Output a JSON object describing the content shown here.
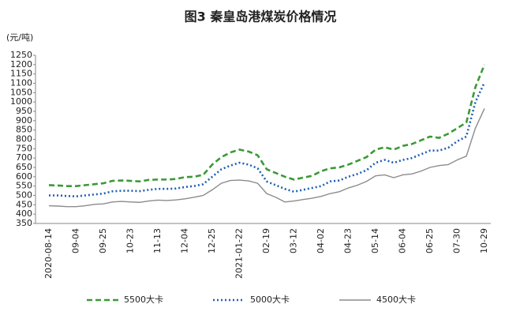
{
  "chart_data": {
    "type": "line",
    "title": "图3  秦皇岛港煤炭价格情况",
    "y_label": "(元/吨)",
    "categories": [
      "2020-08-14",
      null,
      null,
      "09-04",
      null,
      null,
      "09-25",
      null,
      null,
      "10-23",
      null,
      null,
      "11-13",
      null,
      null,
      "12-04",
      null,
      null,
      "12-25",
      null,
      null,
      "2021-01-22",
      null,
      null,
      "02-19",
      null,
      null,
      "03-12",
      null,
      null,
      "04-02",
      null,
      null,
      "04-23",
      null,
      null,
      "05-14",
      null,
      null,
      "06-04",
      null,
      null,
      "06-25",
      null,
      null,
      "07-30",
      null,
      null,
      "10-29"
    ],
    "series": [
      {
        "name": "5500大卡",
        "color": "#3a9a35",
        "style": "dashed",
        "values": [
          555,
          553,
          550,
          550,
          555,
          560,
          565,
          578,
          580,
          578,
          575,
          583,
          585,
          585,
          588,
          598,
          600,
          610,
          665,
          705,
          730,
          745,
          735,
          715,
          640,
          620,
          600,
          585,
          595,
          605,
          630,
          645,
          650,
          665,
          685,
          705,
          745,
          758,
          745,
          765,
          775,
          795,
          815,
          808,
          830,
          860,
          890,
          1080,
          1200
        ]
      },
      {
        "name": "5000大卡",
        "color": "#1f5fb4",
        "style": "dotted",
        "values": [
          500,
          500,
          497,
          495,
          500,
          505,
          510,
          522,
          525,
          525,
          523,
          530,
          535,
          535,
          537,
          545,
          550,
          560,
          600,
          640,
          660,
          675,
          665,
          645,
          575,
          555,
          535,
          520,
          530,
          540,
          550,
          575,
          580,
          600,
          615,
          635,
          675,
          690,
          675,
          690,
          700,
          720,
          740,
          740,
          755,
          790,
          815,
          1000,
          1105
        ]
      },
      {
        "name": "4500大卡",
        "color": "#8c8c8c",
        "style": "solid",
        "values": [
          445,
          443,
          440,
          440,
          445,
          452,
          455,
          465,
          468,
          465,
          463,
          470,
          475,
          473,
          476,
          482,
          490,
          500,
          530,
          565,
          580,
          582,
          578,
          565,
          510,
          490,
          465,
          470,
          478,
          485,
          495,
          510,
          520,
          540,
          555,
          575,
          605,
          610,
          595,
          610,
          615,
          630,
          650,
          660,
          665,
          690,
          710,
          860,
          965
        ]
      }
    ],
    "ylim": [
      350,
      1250
    ],
    "yticks": [
      350,
      400,
      450,
      500,
      550,
      600,
      650,
      700,
      750,
      800,
      850,
      900,
      950,
      1000,
      1050,
      1100,
      1150,
      1200,
      1250
    ]
  }
}
